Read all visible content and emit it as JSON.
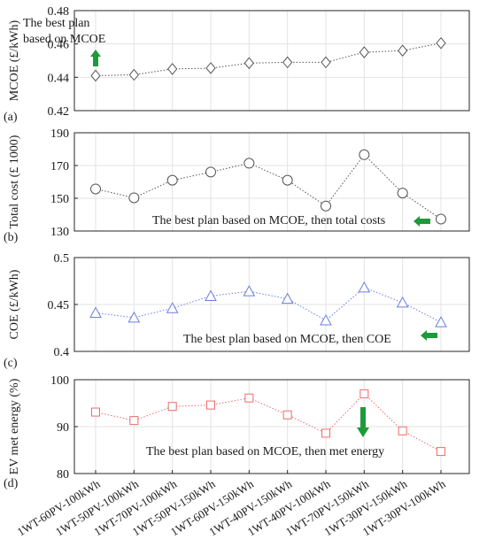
{
  "categories": [
    "1WT-60PV-100kWh",
    "1WT-50PV-100kWh",
    "1WT-70PV-100kWh",
    "1WT-50PV-150kWh",
    "1WT-60PV-150kWh",
    "1WT-40PV-150kWh",
    "1WT-40PV-100kWh",
    "1WT-70PV-150kWh",
    "1WT-30PV-150kWh",
    "1WT-30PV-100kWh"
  ],
  "chart_data": [
    {
      "type": "line",
      "panel": "(a)",
      "ylabel": "MCOE (£/kWh)",
      "ylim": [
        0.42,
        0.48
      ],
      "yticks": [
        "0.42",
        "0.44",
        "0.46",
        "0.48"
      ],
      "grid": true,
      "marker": "diamond",
      "color": "#555555",
      "values": [
        0.441,
        0.4415,
        0.445,
        0.4455,
        0.4485,
        0.449,
        0.449,
        0.455,
        0.456,
        0.4605
      ],
      "annotation": {
        "text_lines": [
          "The best plan",
          "based on MCOE"
        ],
        "arrow": "up",
        "arrow_color": "#1e9a3a"
      }
    },
    {
      "type": "line",
      "panel": "(b)",
      "ylabel": "Total cost (£ 1000)",
      "ylim": [
        130,
        190
      ],
      "yticks": [
        "130",
        "150",
        "170",
        "190"
      ],
      "grid": true,
      "marker": "circle",
      "color": "#555555",
      "values": [
        155.7,
        150.3,
        161,
        166,
        171.4,
        161,
        145.3,
        176.6,
        153.2,
        137.3
      ],
      "annotation": {
        "text_lines": [
          "The best plan based on MCOE, then total costs"
        ],
        "arrow": "left",
        "arrow_color": "#1e9a3a"
      }
    },
    {
      "type": "line",
      "panel": "(c)",
      "ylabel": "COE (£/kWh)",
      "ylim": [
        0.4,
        0.5
      ],
      "yticks": [
        "0.4",
        "0.45",
        "0.5"
      ],
      "grid": true,
      "marker": "triangle",
      "color": "#6b7fe0",
      "values": [
        0.441,
        0.436,
        0.446,
        0.459,
        0.464,
        0.456,
        0.433,
        0.468,
        0.452,
        0.431
      ],
      "annotation": {
        "text_lines": [
          "The best plan based on MCOE, then COE"
        ],
        "arrow": "left",
        "arrow_color": "#1e9a3a"
      }
    },
    {
      "type": "line",
      "panel": "(d)",
      "ylabel": "EV met energy (%)",
      "ylim": [
        80,
        100
      ],
      "yticks": [
        "80",
        "90",
        "100"
      ],
      "grid": true,
      "marker": "square",
      "color": "#ef6b6b",
      "values": [
        93.1,
        91.3,
        94.3,
        94.6,
        96.1,
        92.5,
        88.6,
        97,
        89.1,
        84.7
      ],
      "annotation": {
        "text_lines": [
          "The best plan based on MCOE, then met energy"
        ],
        "arrow": "down",
        "arrow_color": "#1e9a3a"
      }
    }
  ]
}
